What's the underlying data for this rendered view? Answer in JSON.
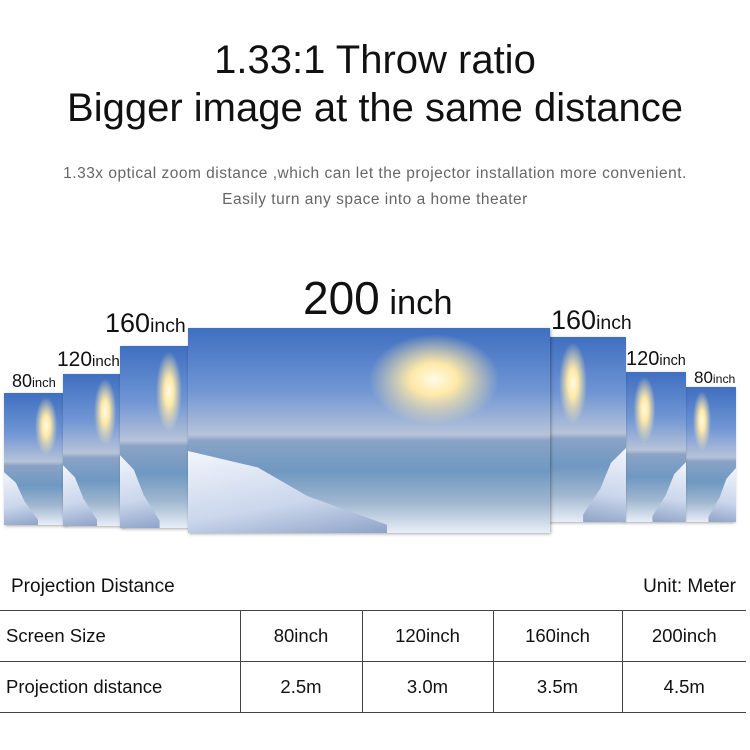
{
  "heading": {
    "line1": "1.33:1 Throw ratio",
    "line2": "Bigger image at the same distance"
  },
  "subtitle": {
    "line1": "1.33x optical zoom distance ,which can let the projector installation more convenient.",
    "line2": "Easily turn any space into a home theater"
  },
  "screens": [
    {
      "number": "80",
      "unit": "inch"
    },
    {
      "number": "120",
      "unit": "inch"
    },
    {
      "number": "160",
      "unit": "inch"
    },
    {
      "number": "200",
      "unit": " inch"
    },
    {
      "number": "160",
      "unit": "inch"
    },
    {
      "number": "120",
      "unit": "inch"
    },
    {
      "number": "80",
      "unit": "inch"
    }
  ],
  "table": {
    "caption": "Projection Distance",
    "unit": "Unit: Meter",
    "rows": [
      [
        "Screen Size",
        "80inch",
        "120inch",
        "160inch",
        "200inch"
      ],
      [
        "Projection distance",
        "2.5m",
        "3.0m",
        "3.5m",
        "4.5m"
      ]
    ]
  }
}
